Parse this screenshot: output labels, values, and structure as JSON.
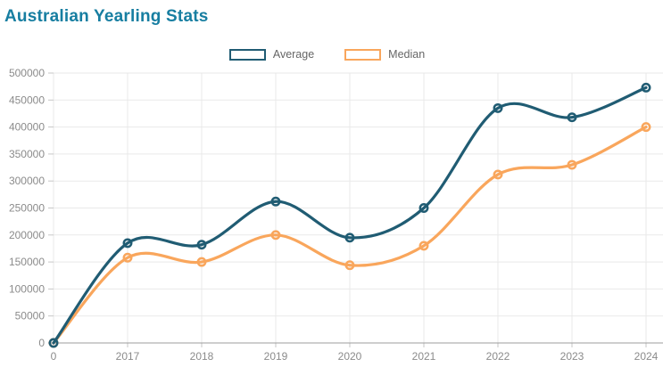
{
  "page": {
    "title": "Australian Yearling Stats"
  },
  "colors": {
    "title": "#177ea1",
    "average": "#205c73",
    "median": "#f9a65c",
    "axis_text": "#8b8b8b",
    "legend_text": "#666666",
    "gridline": "#e9e9e9",
    "axis_line": "#9e9e9e",
    "tick": "#c7c7c7"
  },
  "legend": {
    "items": [
      {
        "label": "Average",
        "color": "#205c73"
      },
      {
        "label": "Median",
        "color": "#f9a65c"
      }
    ]
  },
  "chart_data": {
    "type": "line",
    "title": "Australian Yearling Stats",
    "categories": [
      "0",
      "2017",
      "2018",
      "2019",
      "2020",
      "2021",
      "2022",
      "2023",
      "2024"
    ],
    "series": [
      {
        "name": "Average",
        "color": "#205c73",
        "values": [
          0,
          185000,
          182000,
          262000,
          195000,
          250000,
          435000,
          418000,
          473000
        ]
      },
      {
        "name": "Median",
        "color": "#f9a65c",
        "values": [
          0,
          158000,
          150000,
          200000,
          144000,
          180000,
          312000,
          330000,
          400000
        ]
      }
    ],
    "xlabel": "",
    "ylabel": "",
    "y_ticks": [
      0,
      50000,
      100000,
      150000,
      200000,
      250000,
      300000,
      350000,
      400000,
      450000,
      500000
    ],
    "ylim": [
      0,
      500000
    ],
    "grid": true,
    "legend_position": "top",
    "curve": "smooth",
    "point_style": "open-circle"
  }
}
